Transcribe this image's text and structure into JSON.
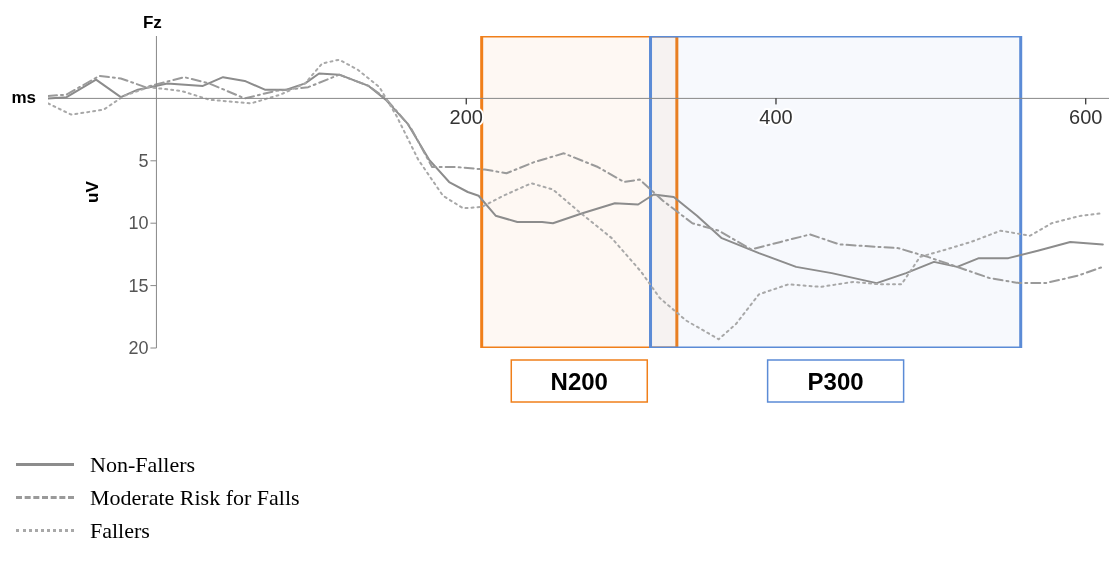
{
  "chart_data": {
    "type": "line",
    "title": "Fz",
    "xlabel": "ms",
    "ylabel": "uV",
    "xlim": [
      -70,
      615
    ],
    "xticks": [
      200,
      400,
      600
    ],
    "ylim": [
      20,
      -5
    ],
    "yticks": [
      5,
      10,
      15,
      20
    ],
    "marker": "none",
    "legend": "bottom left",
    "bands": [
      {
        "axis": "x",
        "from": 210,
        "to": 336,
        "label": "N200",
        "color": "#f07f1a"
      },
      {
        "axis": "x",
        "from": 319,
        "to": 558,
        "label": "P300",
        "color": "#5b8bd6"
      }
    ],
    "series": [
      {
        "name": "Non-Fallers",
        "color": "#8c8c8c",
        "line_style": "solid",
        "x": [
          -70,
          -58,
          -39,
          -23,
          -12,
          7,
          30,
          43,
          57,
          70,
          84,
          96,
          105,
          118,
          137,
          148,
          162,
          176,
          189,
          201,
          208,
          219,
          233,
          249,
          256,
          275,
          296,
          311,
          321,
          334,
          349,
          365,
          389,
          413,
          436,
          465,
          484,
          502,
          517,
          531,
          550,
          569,
          590,
          611
        ],
        "values": [
          0,
          -0.1,
          -1.5,
          -0.1,
          -0.7,
          -1.2,
          -1.0,
          -1.7,
          -1.4,
          -0.7,
          -0.7,
          -1.2,
          -2.0,
          -1.9,
          -1.0,
          0.1,
          2.0,
          4.9,
          6.7,
          7.5,
          7.8,
          9.4,
          9.9,
          9.9,
          10,
          9.2,
          8.4,
          8.5,
          7.7,
          7.9,
          9.4,
          11.2,
          12.4,
          13.5,
          14.0,
          14.8,
          14.0,
          13.1,
          13.5,
          12.8,
          12.8,
          12.2,
          11.5,
          11.7
        ]
      },
      {
        "name": "Moderate Risk for Falls",
        "color": "#9a9a9a",
        "line_style": "dashed",
        "x": [
          -70,
          -58,
          -37,
          -23,
          -7,
          18,
          34,
          57,
          77,
          98,
          118,
          137,
          148,
          164,
          178,
          194,
          212,
          226,
          244,
          263,
          285,
          302,
          312,
          327,
          346,
          363,
          384,
          403,
          422,
          441,
          479,
          498,
          517,
          538,
          557,
          574,
          595,
          611
        ],
        "values": [
          -0.2,
          -0.3,
          -1.8,
          -1.6,
          -0.9,
          -1.7,
          -1.2,
          0,
          -0.6,
          -0.9,
          -1.9,
          -1.0,
          0,
          2.3,
          5.5,
          5.5,
          5.7,
          6.0,
          5.1,
          4.4,
          5.5,
          6.7,
          6.5,
          8.2,
          10.0,
          10.6,
          12.1,
          11.5,
          10.9,
          11.7,
          12.0,
          12.7,
          13.5,
          14.4,
          14.8,
          14.8,
          14.2,
          13.5
        ]
      },
      {
        "name": "Fallers",
        "color": "#a8a8a8",
        "line_style": "dotted",
        "x": [
          -70,
          -55,
          -34,
          -21,
          -5,
          16,
          34,
          61,
          80,
          96,
          107,
          118,
          130,
          144,
          155,
          169,
          185,
          198,
          210,
          224,
          242,
          256,
          273,
          294,
          313,
          325,
          342,
          363,
          374,
          389,
          408,
          429,
          450,
          467,
          481,
          493,
          510,
          526,
          545,
          564,
          578,
          597,
          611
        ],
        "values": [
          0.4,
          1.3,
          0.9,
          -0.2,
          -0.9,
          -0.6,
          0.1,
          0.4,
          -0.3,
          -1.2,
          -2.8,
          -3.1,
          -2.3,
          -0.9,
          1.4,
          4.9,
          7.8,
          8.8,
          8.7,
          7.8,
          6.8,
          7.3,
          9.1,
          11.2,
          13.9,
          16.0,
          17.8,
          19.3,
          18.1,
          15.7,
          14.9,
          15.1,
          14.7,
          14.9,
          14.9,
          12.7,
          12.1,
          11.5,
          10.6,
          11.0,
          10.0,
          9.4,
          9.2
        ]
      }
    ]
  }
}
